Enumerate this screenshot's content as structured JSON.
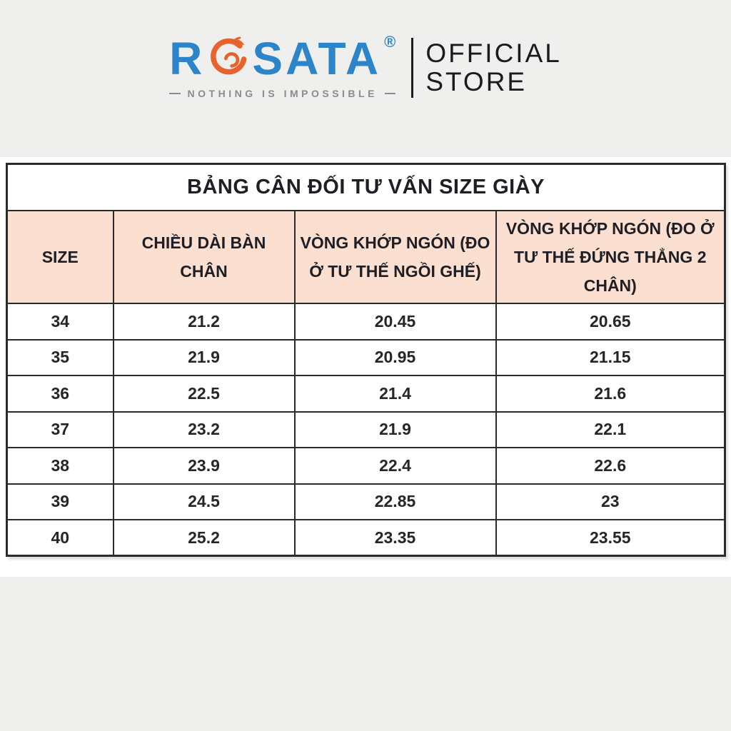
{
  "page": {
    "background_gray": "#efefed",
    "band_white": "#ffffff"
  },
  "logo": {
    "brand_prefix": "R",
    "brand_suffix": "SATA",
    "registered_mark": "®",
    "tagline": "NOTHING IS IMPOSSIBLE",
    "store_line1": "OFFICIAL",
    "store_line2": "STORE",
    "brand_blue": "#2b85c8",
    "brand_orange": "#e8622d",
    "tagline_gray": "#8b8b8b"
  },
  "size_chart": {
    "title": "BẢNG CÂN ĐỐI TƯ VẤN SIZE GIÀY",
    "header_bg": "#fbdfd0",
    "border_color": "#2b2b2b",
    "columns": [
      "SIZE",
      "CHIỀU DÀI BÀN CHÂN",
      "VÒNG KHỚP NGÓN (ĐO\nỞ TƯ THẾ NGỒI GHẾ)",
      "VÒNG KHỚP NGÓN (ĐO Ở\nTƯ THẾ ĐỨNG THẲNG 2\nCHÂN)"
    ],
    "rows": [
      [
        "34",
        "21.2",
        "20.45",
        "20.65"
      ],
      [
        "35",
        "21.9",
        "20.95",
        "21.15"
      ],
      [
        "36",
        "22.5",
        "21.4",
        "21.6"
      ],
      [
        "37",
        "23.2",
        "21.9",
        "22.1"
      ],
      [
        "38",
        "23.9",
        "22.4",
        "22.6"
      ],
      [
        "39",
        "24.5",
        "22.85",
        "23"
      ],
      [
        "40",
        "25.2",
        "23.35",
        "23.55"
      ]
    ]
  },
  "chart_data": {
    "type": "table",
    "title": "BẢNG CÂN ĐỐI TƯ VẤN SIZE GIÀY",
    "columns": [
      "SIZE",
      "CHIỀU DÀI BÀN CHÂN",
      "VÒNG KHỚP NGÓN (ĐO Ở TƯ THẾ NGỒI GHẾ)",
      "VÒNG KHỚP NGÓN (ĐO Ở TƯ THẾ ĐỨNG THẲNG 2 CHÂN)"
    ],
    "rows": [
      [
        "34",
        "21.2",
        "20.45",
        "20.65"
      ],
      [
        "35",
        "21.9",
        "20.95",
        "21.15"
      ],
      [
        "36",
        "22.5",
        "21.4",
        "21.6"
      ],
      [
        "37",
        "23.2",
        "21.9",
        "22.1"
      ],
      [
        "38",
        "23.9",
        "22.4",
        "22.6"
      ],
      [
        "39",
        "24.5",
        "22.85",
        "23"
      ],
      [
        "40",
        "25.2",
        "23.35",
        "23.55"
      ]
    ]
  }
}
